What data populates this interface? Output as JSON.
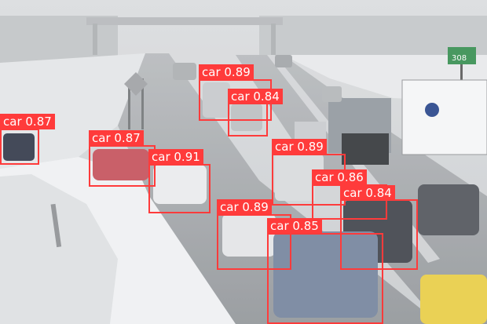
{
  "scene": {
    "sky_color": "#d6d8da",
    "snow_color": "#eceef0",
    "road_color": "#9a9ea3",
    "sign_green": "#2f8a4a",
    "sign_text": "308"
  },
  "detections": {
    "box_color": "#ff3b3b",
    "text_color": "#ffffff",
    "items": [
      {
        "class": "car",
        "score": "0.89"
      },
      {
        "class": "car",
        "score": "0.84"
      },
      {
        "class": "car",
        "score": "0.87"
      },
      {
        "class": "car",
        "score": "0.87"
      },
      {
        "class": "car",
        "score": "0.91"
      },
      {
        "class": "car",
        "score": "0.89"
      },
      {
        "class": "car",
        "score": "0.86"
      },
      {
        "class": "car",
        "score": "0.84"
      },
      {
        "class": "car",
        "score": "0.89"
      },
      {
        "class": "car",
        "score": "0.85"
      }
    ]
  }
}
